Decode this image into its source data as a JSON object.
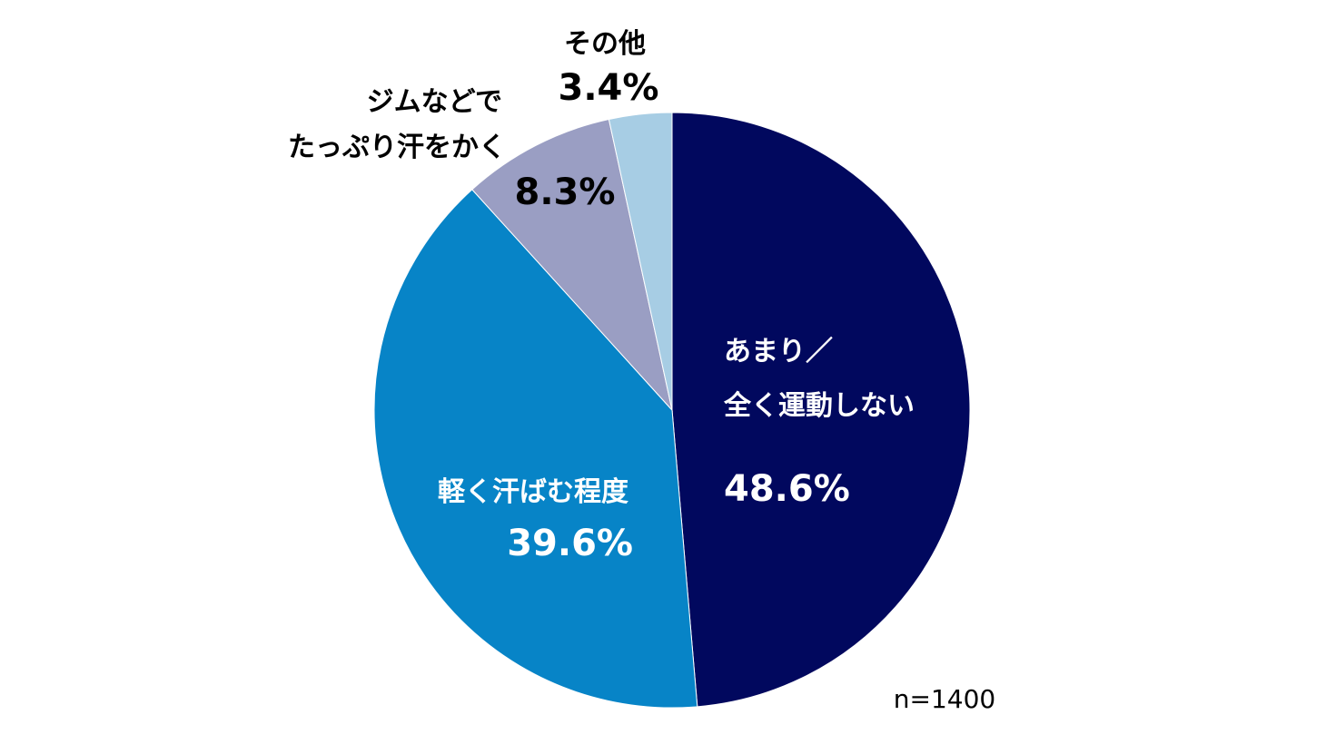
{
  "chart_data": {
    "type": "pie",
    "start": "12 o'clock",
    "direction": "clockwise",
    "slices": [
      {
        "label_lines": [
          "あまり／",
          "全く運動しない"
        ],
        "value": 48.6,
        "value_text": "48.6%",
        "color": "#01085E",
        "text_color": "#FFFFFF"
      },
      {
        "label_lines": [
          "軽く汗ばむ程度"
        ],
        "value": 39.6,
        "value_text": "39.6%",
        "color": "#0784C7",
        "text_color": "#FFFFFF"
      },
      {
        "label_lines": [
          "ジムなどで",
          "たっぷり汗をかく"
        ],
        "value": 8.3,
        "value_text": "8.3%",
        "color": "#9A9EC3",
        "text_color": "#000000"
      },
      {
        "label_lines": [
          "その他"
        ],
        "value": 3.4,
        "value_text": "3.4%",
        "color": "#A7CDE4",
        "text_color": "#000000"
      }
    ],
    "note": "n=1400"
  }
}
